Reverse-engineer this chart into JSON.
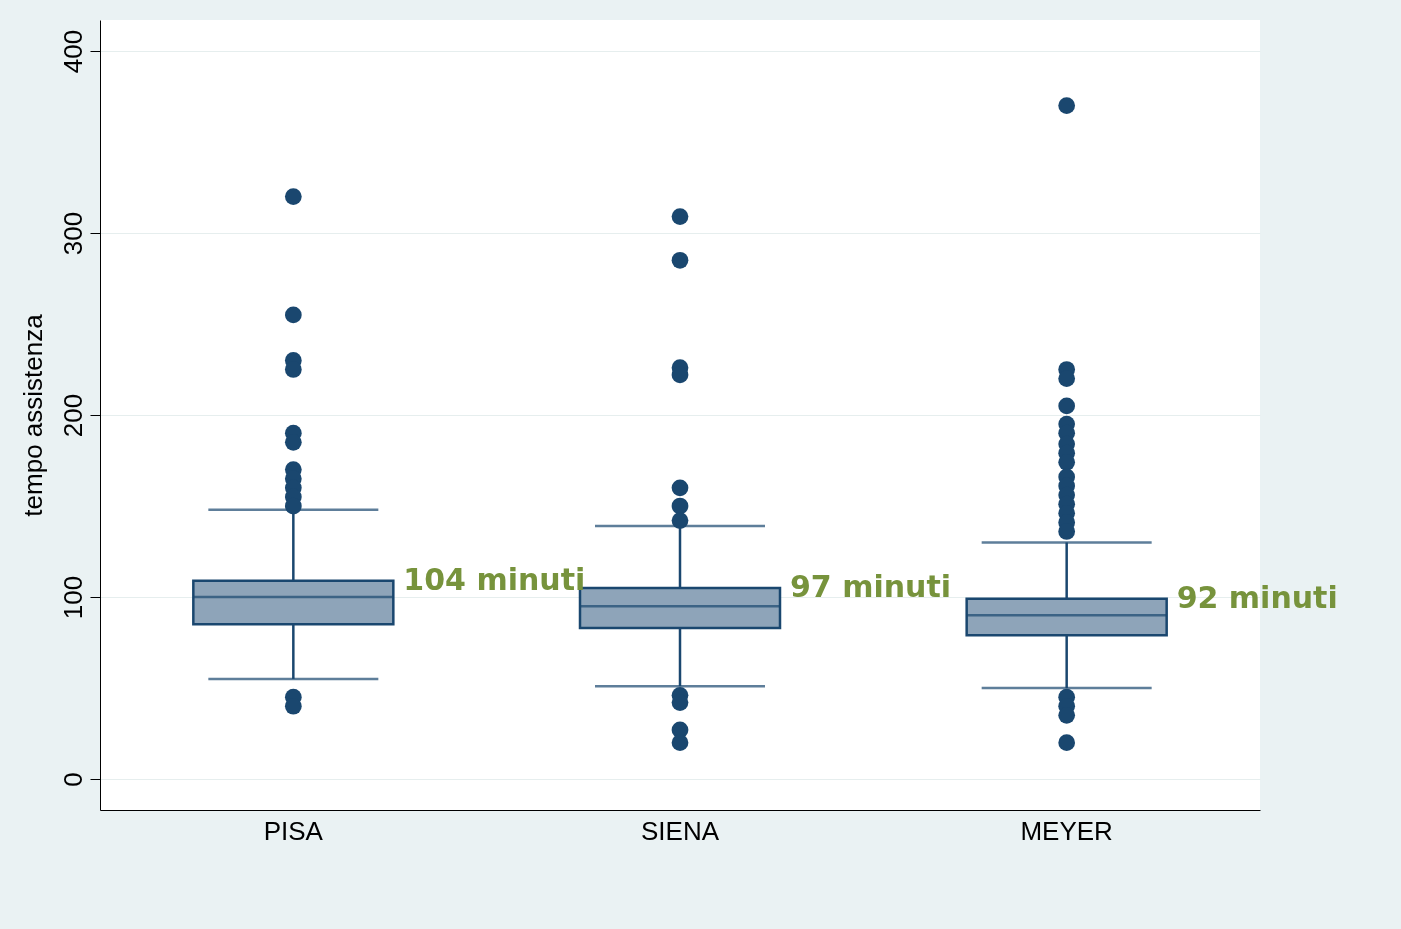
{
  "chart_data": {
    "type": "box",
    "ylabel": "tempo assistenza",
    "categories": [
      "PISA",
      "SIENA",
      "MEYER"
    ],
    "ylim": [
      -17,
      417
    ],
    "yticks": [
      0,
      100,
      200,
      300,
      400
    ],
    "grid": "y",
    "color": "#8ea4b9",
    "boxes": [
      {
        "low": 55,
        "q1": 85,
        "median": 100,
        "q3": 109,
        "high": 148,
        "outliers": [
          320,
          255,
          230,
          225,
          190,
          185,
          170,
          165,
          160,
          155,
          150,
          45,
          40
        ]
      },
      {
        "low": 51,
        "q1": 83,
        "median": 95,
        "q3": 105,
        "high": 139,
        "outliers": [
          309,
          285,
          226,
          222,
          160,
          150,
          142,
          46,
          42,
          27,
          20
        ]
      },
      {
        "low": 50,
        "q1": 79,
        "median": 90,
        "q3": 99,
        "high": 130,
        "outliers": [
          370,
          225,
          220,
          205,
          195,
          190,
          184,
          179,
          174,
          166,
          161,
          156,
          151,
          146,
          141,
          136,
          45,
          40,
          35,
          20
        ]
      }
    ],
    "annotations": [
      "104 minuti",
      "97 minuti",
      "92 minuti"
    ]
  }
}
